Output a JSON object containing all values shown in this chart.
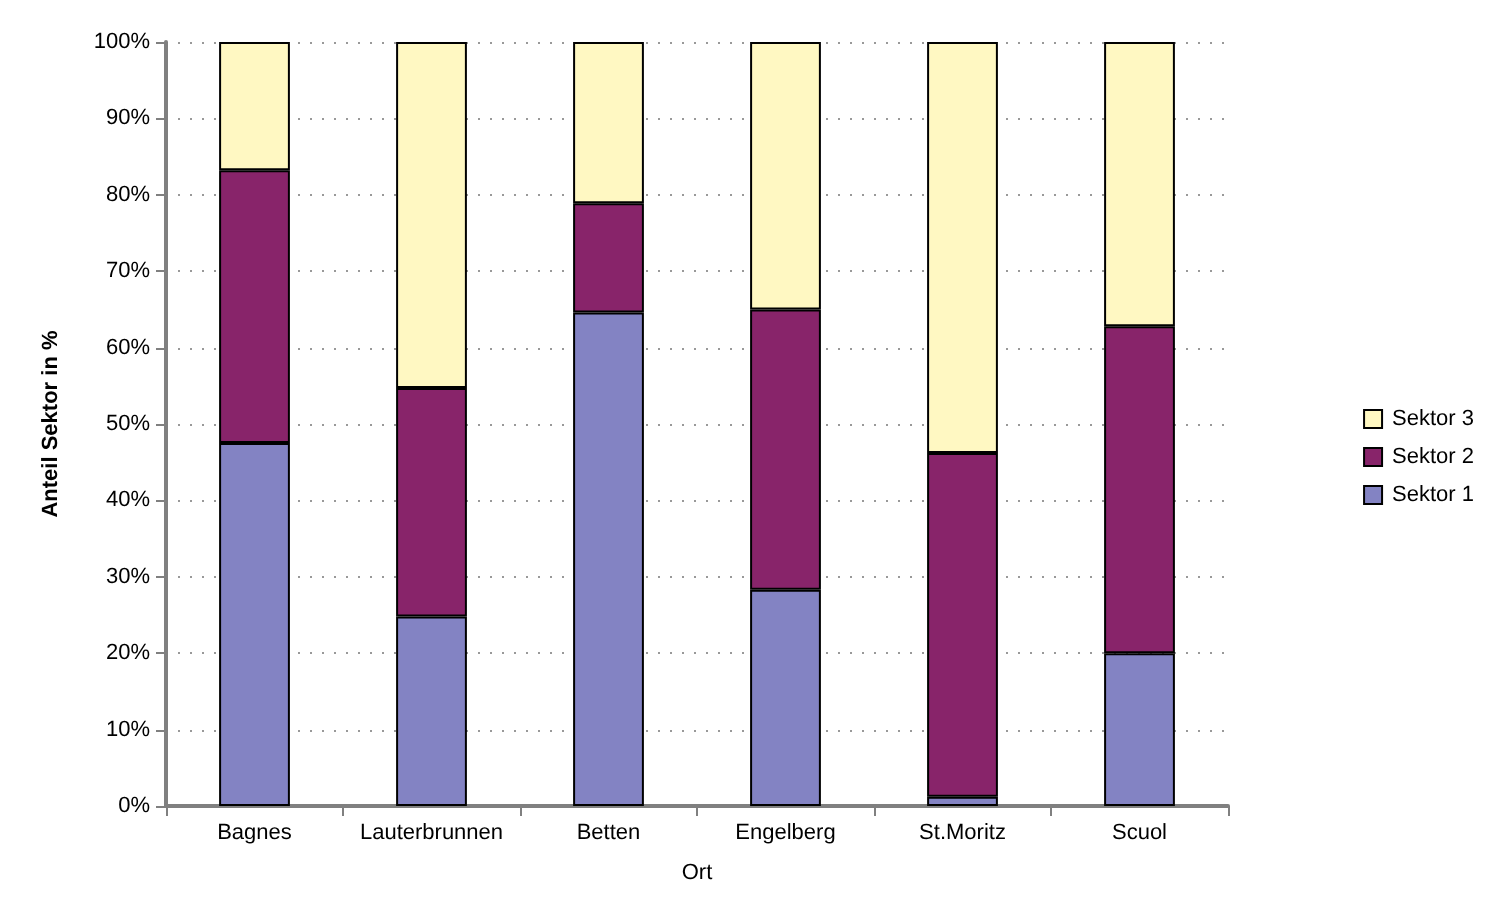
{
  "chart_data": {
    "type": "bar",
    "stacked": true,
    "xlabel": "Ort",
    "ylabel": "Anteil Sektor in %",
    "categories": [
      "Bagnes",
      "Lauterbrunnen",
      "Betten",
      "Engelberg",
      "St.Moritz",
      "Scuol"
    ],
    "series": [
      {
        "name": "Sektor 1",
        "color": "#8383c3",
        "values": [
          47.5,
          24.8,
          64.6,
          28.3,
          1.2,
          20.0
        ]
      },
      {
        "name": "Sektor 2",
        "color": "#88246a",
        "values": [
          35.7,
          29.9,
          14.3,
          36.7,
          45.0,
          42.8
        ]
      },
      {
        "name": "Sektor 3",
        "color": "#fff8c2",
        "values": [
          16.8,
          45.3,
          21.1,
          35.0,
          53.8,
          37.2
        ]
      }
    ],
    "ylim": [
      0,
      100
    ],
    "yticks": [
      {
        "value": 0,
        "label": "0%"
      },
      {
        "value": 10,
        "label": "10%"
      },
      {
        "value": 20,
        "label": "20%"
      },
      {
        "value": 30,
        "label": "30%"
      },
      {
        "value": 40,
        "label": "40%"
      },
      {
        "value": 50,
        "label": "50%"
      },
      {
        "value": 60,
        "label": "60%"
      },
      {
        "value": 70,
        "label": "70%"
      },
      {
        "value": 80,
        "label": "80%"
      },
      {
        "value": 90,
        "label": "90%"
      },
      {
        "value": 100,
        "label": "100%"
      }
    ],
    "grid": "y",
    "legend": "right"
  }
}
